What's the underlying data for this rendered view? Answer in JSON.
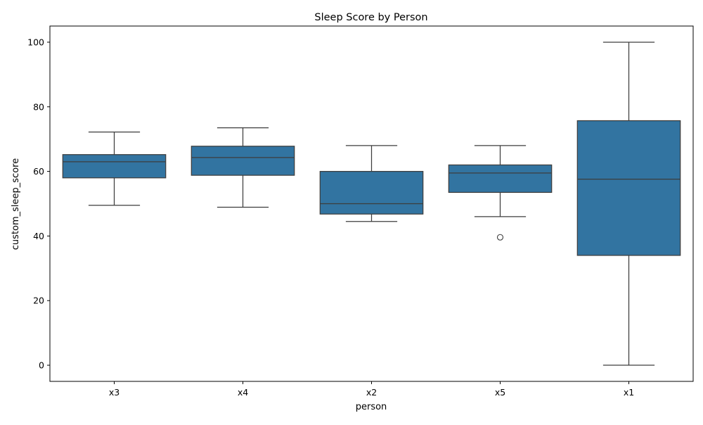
{
  "chart_data": {
    "type": "box",
    "title": "Sleep Score by Person",
    "xlabel": "person",
    "ylabel": "custom_sleep_score",
    "ylim": [
      -5,
      105
    ],
    "yticks": [
      0,
      20,
      40,
      60,
      80,
      100
    ],
    "grid": false,
    "legend": "none",
    "categories": [
      "x3",
      "x4",
      "x2",
      "x5",
      "x1"
    ],
    "boxes": [
      {
        "category": "x3",
        "whisker_low": 49.5,
        "q1": 58.0,
        "median": 63.0,
        "q3": 65.2,
        "whisker_high": 72.2,
        "outliers": []
      },
      {
        "category": "x4",
        "whisker_low": 48.9,
        "q1": 58.8,
        "median": 64.3,
        "q3": 67.8,
        "whisker_high": 73.5,
        "outliers": []
      },
      {
        "category": "x2",
        "whisker_low": 44.5,
        "q1": 46.8,
        "median": 50.0,
        "q3": 60.0,
        "whisker_high": 68.0,
        "outliers": []
      },
      {
        "category": "x5",
        "whisker_low": 46.0,
        "q1": 53.5,
        "median": 59.5,
        "q3": 62.0,
        "whisker_high": 68.0,
        "outliers": [
          39.6
        ]
      },
      {
        "category": "x1",
        "whisker_low": 0.0,
        "q1": 34.0,
        "median": 57.6,
        "q3": 75.7,
        "whisker_high": 100.0,
        "outliers": []
      }
    ]
  },
  "colors": {
    "box_fill": "#3274a1",
    "line": "#3d3d3d",
    "axis": "#000000",
    "background": "#ffffff"
  }
}
